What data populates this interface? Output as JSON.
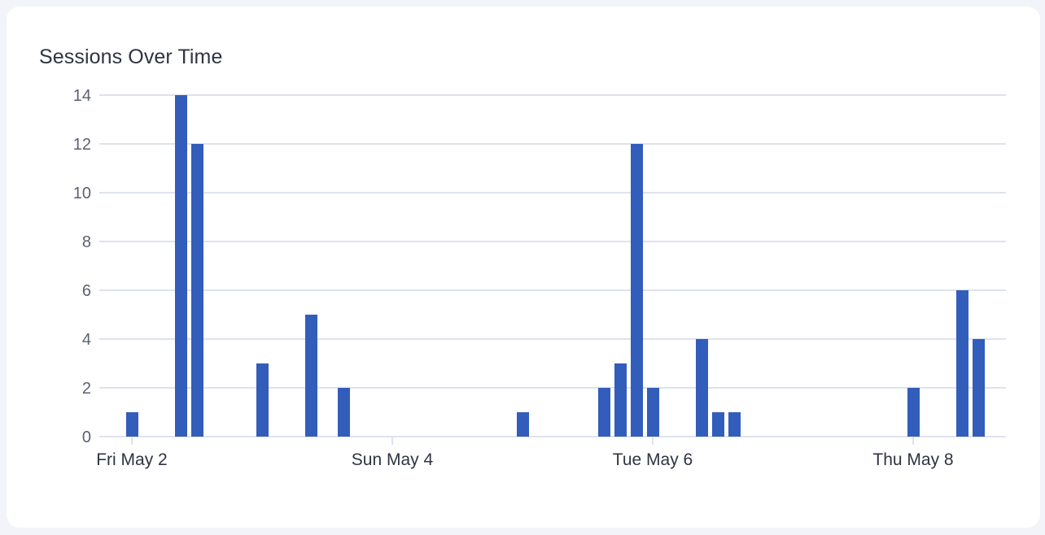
{
  "card": {
    "title": "Sessions Over Time"
  },
  "chart_data": {
    "type": "bar",
    "title": "Sessions Over Time",
    "xlabel": "",
    "ylabel": "",
    "ylim": [
      0,
      14
    ],
    "grid": true,
    "legend": null,
    "bucket_hours": 3,
    "start": "Fri May 2 00:00",
    "y_ticks": [
      0,
      2,
      4,
      6,
      8,
      10,
      12,
      14
    ],
    "x_ticks": [
      {
        "label": "Fri May 2",
        "bucket": 0
      },
      {
        "label": "Sun May 4",
        "bucket": 16
      },
      {
        "label": "Tue May 6",
        "bucket": 32
      },
      {
        "label": "Thu May 8",
        "bucket": 48
      }
    ],
    "values": [
      1,
      0,
      0,
      14,
      12,
      0,
      0,
      0,
      3,
      0,
      0,
      5,
      0,
      2,
      0,
      0,
      0,
      0,
      0,
      0,
      0,
      0,
      0,
      0,
      1,
      0,
      0,
      0,
      0,
      2,
      3,
      12,
      2,
      0,
      0,
      4,
      1,
      1,
      0,
      0,
      0,
      0,
      0,
      0,
      0,
      0,
      0,
      0,
      2,
      0,
      0,
      6,
      4
    ],
    "series": [
      {
        "name": "Sessions",
        "color": "#335dbb"
      }
    ]
  },
  "colors": {
    "bar": "#335dbb",
    "grid": "#dfe2ee",
    "background": "#f3f4f9",
    "card": "#ffffff"
  }
}
